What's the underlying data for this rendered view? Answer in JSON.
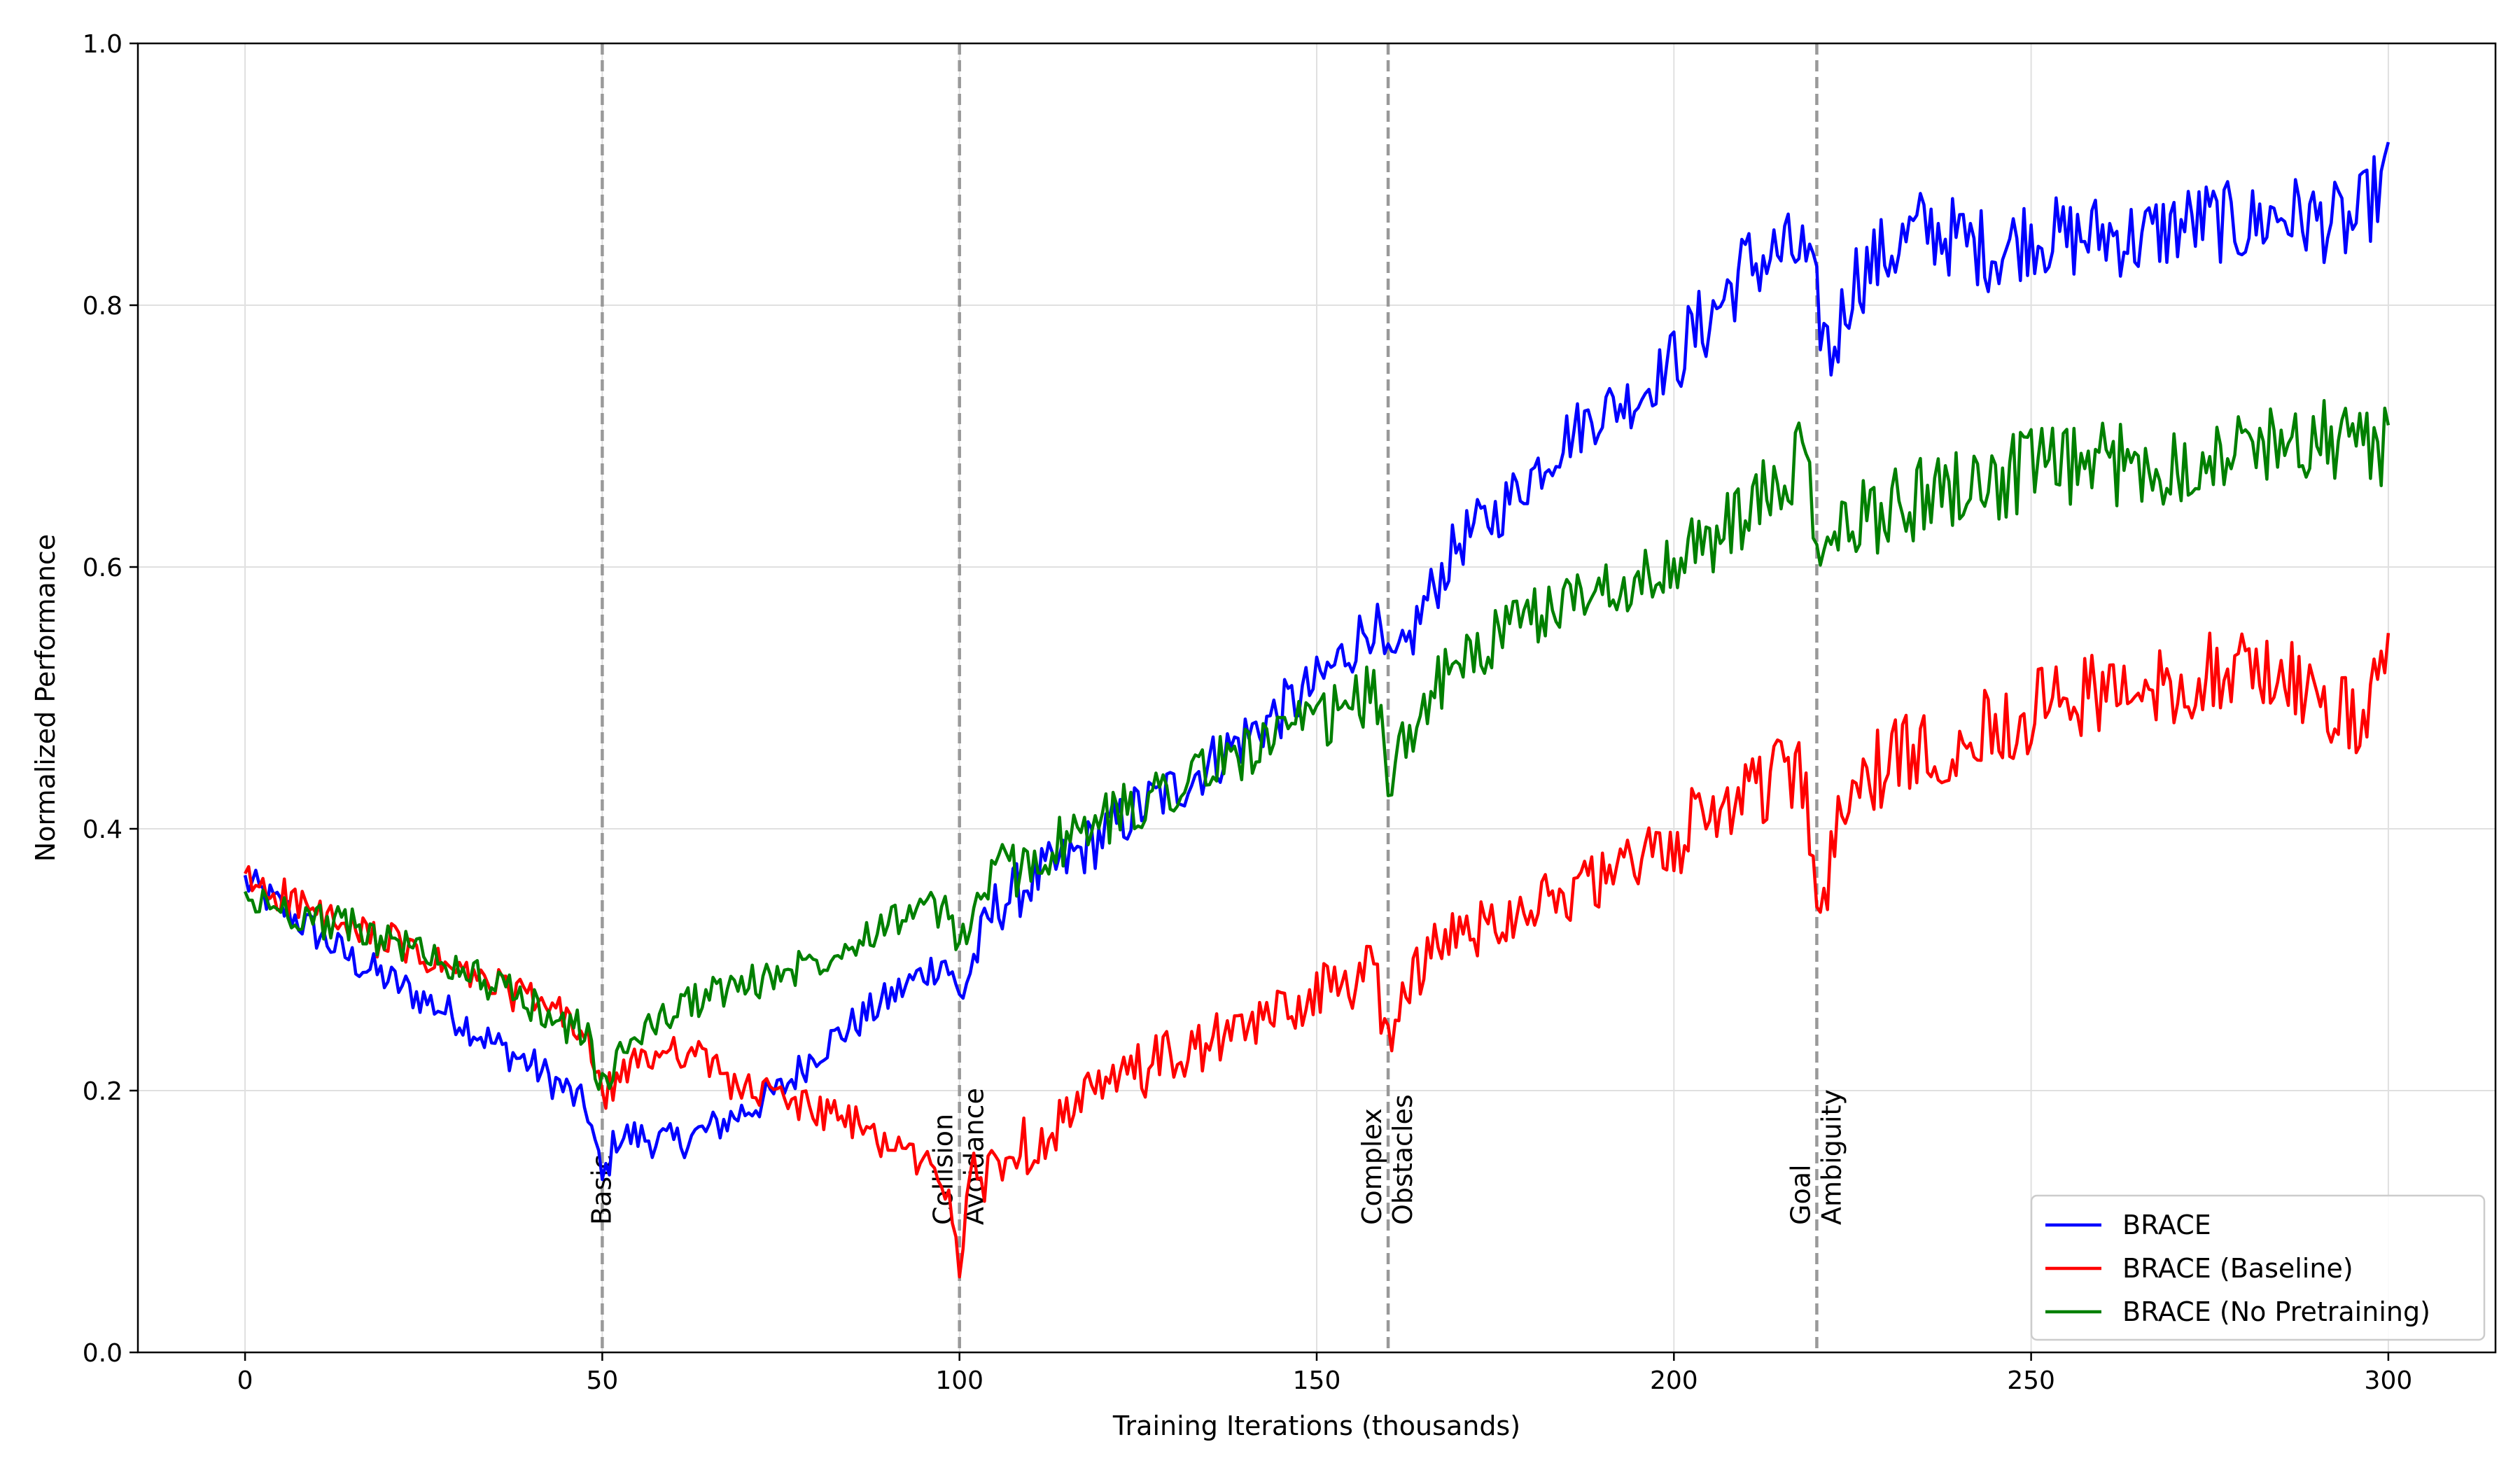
{
  "chart_data": {
    "type": "line",
    "title": "",
    "xlabel": "Training Iterations (thousands)",
    "ylabel": "Normalized Performance",
    "xlim": [
      -15,
      315
    ],
    "ylim": [
      0.0,
      1.0
    ],
    "xticks": [
      0,
      50,
      100,
      150,
      200,
      250,
      300
    ],
    "yticks": [
      0.0,
      0.2,
      0.4,
      0.6,
      0.8,
      1.0
    ],
    "xtick_labels": [
      "0",
      "50",
      "100",
      "150",
      "200",
      "250",
      "300"
    ],
    "ytick_labels": [
      "0.0",
      "0.2",
      "0.4",
      "0.6",
      "0.8",
      "1.0"
    ],
    "grid": true,
    "legend_position": "lower-right",
    "phases": [
      {
        "x": 50,
        "lines": [
          "Basic"
        ]
      },
      {
        "x": 100,
        "lines": [
          "Collision",
          "Avoidance"
        ]
      },
      {
        "x": 160,
        "lines": [
          "Complex",
          "Obstacles"
        ]
      },
      {
        "x": 220,
        "lines": [
          "Goal",
          "Ambiguity"
        ]
      }
    ],
    "x": [
      0,
      5,
      10,
      15,
      20,
      25,
      30,
      35,
      40,
      45,
      48,
      50,
      52,
      55,
      60,
      65,
      70,
      75,
      80,
      85,
      90,
      95,
      98,
      100,
      102,
      105,
      110,
      115,
      120,
      125,
      130,
      135,
      140,
      145,
      150,
      155,
      158,
      160,
      162,
      165,
      170,
      175,
      180,
      185,
      190,
      195,
      200,
      205,
      210,
      215,
      218,
      220,
      222,
      225,
      230,
      235,
      240,
      245,
      250,
      255,
      260,
      265,
      270,
      275,
      280,
      285,
      290,
      295,
      300
    ],
    "series": [
      {
        "name": "BRACE",
        "color": "#0000ff",
        "values": [
          0.36,
          0.34,
          0.32,
          0.3,
          0.285,
          0.27,
          0.255,
          0.235,
          0.22,
          0.2,
          0.185,
          0.13,
          0.165,
          0.165,
          0.16,
          0.17,
          0.185,
          0.2,
          0.23,
          0.25,
          0.27,
          0.29,
          0.3,
          0.27,
          0.3,
          0.34,
          0.36,
          0.375,
          0.395,
          0.415,
          0.43,
          0.45,
          0.47,
          0.49,
          0.51,
          0.54,
          0.56,
          0.52,
          0.53,
          0.57,
          0.62,
          0.64,
          0.67,
          0.7,
          0.72,
          0.73,
          0.76,
          0.79,
          0.83,
          0.84,
          0.84,
          0.8,
          0.76,
          0.82,
          0.84,
          0.86,
          0.85,
          0.84,
          0.855,
          0.85,
          0.855,
          0.85,
          0.86,
          0.865,
          0.86,
          0.87,
          0.865,
          0.86,
          0.9
        ]
      },
      {
        "name": "BRACE (Baseline)",
        "color": "#ff0000",
        "values": [
          0.36,
          0.35,
          0.335,
          0.32,
          0.315,
          0.3,
          0.29,
          0.28,
          0.27,
          0.255,
          0.24,
          0.19,
          0.21,
          0.22,
          0.235,
          0.22,
          0.2,
          0.195,
          0.185,
          0.175,
          0.16,
          0.145,
          0.13,
          0.075,
          0.13,
          0.145,
          0.16,
          0.18,
          0.2,
          0.215,
          0.225,
          0.235,
          0.245,
          0.26,
          0.275,
          0.285,
          0.29,
          0.24,
          0.275,
          0.3,
          0.32,
          0.33,
          0.345,
          0.35,
          0.36,
          0.375,
          0.39,
          0.41,
          0.43,
          0.44,
          0.44,
          0.325,
          0.38,
          0.43,
          0.45,
          0.46,
          0.47,
          0.48,
          0.49,
          0.5,
          0.505,
          0.5,
          0.51,
          0.52,
          0.52,
          0.52,
          0.5,
          0.48,
          0.52
        ]
      },
      {
        "name": "BRACE (No Pretraining)",
        "color": "#008000",
        "values": [
          0.345,
          0.34,
          0.33,
          0.325,
          0.315,
          0.305,
          0.295,
          0.28,
          0.265,
          0.25,
          0.245,
          0.2,
          0.22,
          0.245,
          0.26,
          0.275,
          0.28,
          0.29,
          0.3,
          0.315,
          0.33,
          0.34,
          0.335,
          0.31,
          0.34,
          0.365,
          0.375,
          0.39,
          0.405,
          0.42,
          0.435,
          0.445,
          0.46,
          0.47,
          0.48,
          0.495,
          0.505,
          0.44,
          0.46,
          0.5,
          0.525,
          0.545,
          0.56,
          0.575,
          0.585,
          0.59,
          0.6,
          0.62,
          0.64,
          0.66,
          0.69,
          0.61,
          0.615,
          0.635,
          0.645,
          0.655,
          0.665,
          0.665,
          0.675,
          0.675,
          0.68,
          0.675,
          0.68,
          0.685,
          0.69,
          0.7,
          0.695,
          0.7,
          0.69
        ]
      }
    ]
  }
}
